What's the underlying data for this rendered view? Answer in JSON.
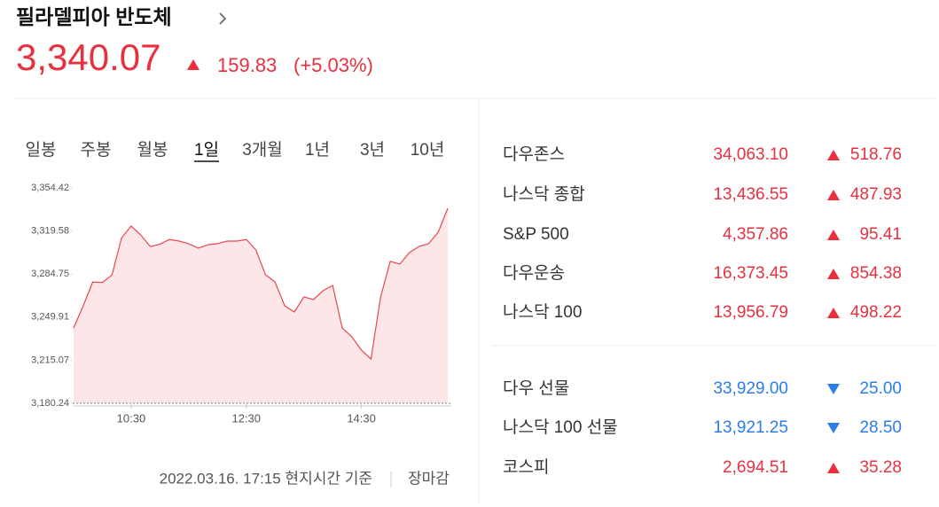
{
  "header": {
    "title": "필라델피아 반도체",
    "price": "3,340.07",
    "change": "159.83",
    "change_pct": "(+5.03%)",
    "direction": "up"
  },
  "tabs": [
    {
      "label": "일봉"
    },
    {
      "label": "주봉"
    },
    {
      "label": "월봉"
    },
    {
      "label": "1일",
      "selected": true
    },
    {
      "label": "3개월"
    },
    {
      "label": "1년"
    },
    {
      "label": "3년"
    },
    {
      "label": "10년"
    }
  ],
  "chart_data": {
    "type": "line",
    "color": "#e8474f",
    "fill": "#fde6e7",
    "grid": false,
    "x": [
      "09:30",
      "09:40",
      "09:50",
      "10:00",
      "10:10",
      "10:20",
      "10:30",
      "10:40",
      "10:50",
      "11:00",
      "11:10",
      "11:20",
      "11:30",
      "11:40",
      "11:50",
      "12:00",
      "12:10",
      "12:20",
      "12:30",
      "12:40",
      "12:50",
      "13:00",
      "13:10",
      "13:20",
      "13:30",
      "13:40",
      "13:50",
      "14:00",
      "14:10",
      "14:20",
      "14:30",
      "14:40",
      "14:50",
      "15:00",
      "15:10",
      "15:20",
      "15:30",
      "15:40",
      "15:50",
      "16:00"
    ],
    "values": [
      3241.1,
      3259.0,
      3278.4,
      3278.0,
      3284.0,
      3314.0,
      3323.6,
      3316.4,
      3307.0,
      3309.0,
      3312.8,
      3311.4,
      3309.3,
      3305.7,
      3308.5,
      3309.3,
      3311.4,
      3311.4,
      3312.8,
      3304.3,
      3284.2,
      3278.4,
      3259.1,
      3254.1,
      3266.3,
      3264.1,
      3271.3,
      3275.6,
      3241.1,
      3234.0,
      3223.2,
      3216.1,
      3266.3,
      3295.0,
      3292.8,
      3302.1,
      3307.1,
      3309.3,
      3318.6,
      3337.9
    ],
    "ylim": [
      3180.24,
      3354.42
    ],
    "yticks": [
      {
        "value": 3354.42,
        "label": "3,354.42"
      },
      {
        "value": 3319.58,
        "label": "3,319.58"
      },
      {
        "value": 3284.75,
        "label": "3,284.75"
      },
      {
        "value": 3249.91,
        "label": "3,249.91"
      },
      {
        "value": 3215.07,
        "label": "3,215.07"
      },
      {
        "value": 3180.24,
        "label": "3,180.24"
      }
    ],
    "xticks": [
      "10:30",
      "12:30",
      "14:30"
    ]
  },
  "footer": {
    "timestamp": "2022.03.16. 17:15 현지시간 기준",
    "status": "장마감"
  },
  "indices": [
    [
      {
        "name": "다우존스",
        "value": "34,063.10",
        "change": "518.76",
        "direction": "up"
      },
      {
        "name": "나스닥 종합",
        "value": "13,436.55",
        "change": "487.93",
        "direction": "up"
      },
      {
        "name": "S&P 500",
        "value": "4,357.86",
        "change": "95.41",
        "direction": "up"
      },
      {
        "name": "다우운송",
        "value": "16,373.45",
        "change": "854.38",
        "direction": "up"
      },
      {
        "name": "나스닥 100",
        "value": "13,956.79",
        "change": "498.22",
        "direction": "up"
      }
    ],
    [
      {
        "name": "다우 선물",
        "value": "33,929.00",
        "change": "25.00",
        "direction": "down"
      },
      {
        "name": "나스닥 100 선물",
        "value": "13,921.25",
        "change": "28.50",
        "direction": "down"
      },
      {
        "name": "코스피",
        "value": "2,694.51",
        "change": "35.28",
        "direction": "up"
      }
    ]
  ]
}
